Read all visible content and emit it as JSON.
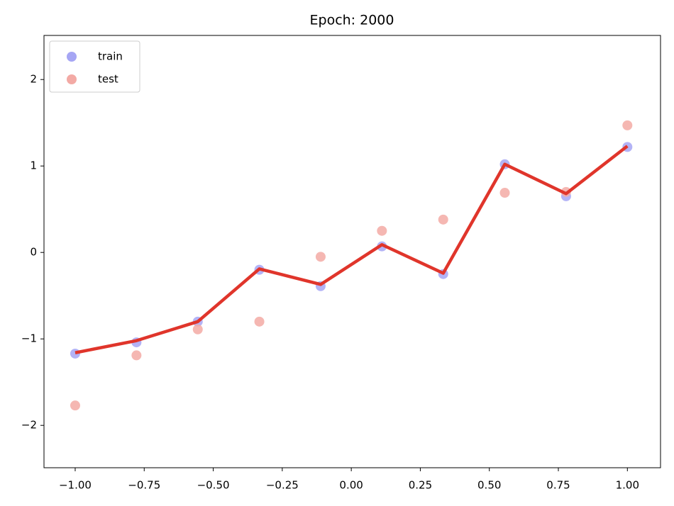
{
  "chart_data": {
    "type": "scatter",
    "title": "Epoch: 2000",
    "x": [
      -1,
      -0.778,
      -0.556,
      -0.333,
      -0.111,
      0.111,
      0.333,
      0.556,
      0.778,
      1
    ],
    "series": [
      {
        "name": "train",
        "color": "#a6a6f4",
        "values": [
          -1.17,
          -1.04,
          -0.8,
          -0.2,
          -0.39,
          0.07,
          -0.25,
          1.02,
          0.65,
          1.22
        ]
      },
      {
        "name": "test",
        "color": "#f3aaa5",
        "values": [
          -1.77,
          -1.19,
          -0.89,
          -0.8,
          -0.05,
          0.25,
          0.38,
          0.69,
          0.7,
          1.47
        ]
      }
    ],
    "line": {
      "color": "#e0352b",
      "values": [
        -1.16,
        -1.02,
        -0.8,
        -0.19,
        -0.37,
        0.09,
        -0.24,
        1.02,
        0.68,
        1.23
      ]
    },
    "xlim": [
      -1.113,
      1.12
    ],
    "ylim": [
      -2.49,
      2.51
    ],
    "xticks": [
      {
        "value": -1,
        "label": "−1.00"
      },
      {
        "value": -0.75,
        "label": "−0.75"
      },
      {
        "value": -0.5,
        "label": "−0.50"
      },
      {
        "value": -0.25,
        "label": "−0.25"
      },
      {
        "value": 0,
        "label": "0.00"
      },
      {
        "value": 0.25,
        "label": "0.25"
      },
      {
        "value": 0.5,
        "label": "0.50"
      },
      {
        "value": 0.75,
        "label": "0.75"
      },
      {
        "value": 1,
        "label": "1.00"
      }
    ],
    "yticks": [
      {
        "value": -2,
        "label": "−2"
      },
      {
        "value": -1,
        "label": "−1"
      },
      0,
      1,
      2
    ],
    "legend": "upper left"
  }
}
